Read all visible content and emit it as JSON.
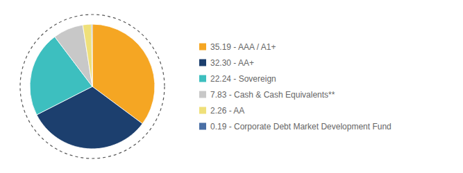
{
  "chart_data": {
    "type": "pie",
    "categories": [
      "35.19 - AAA / A1+",
      "32.30 - AA+",
      "22.24 - Sovereign",
      "7.83 - Cash & Cash Equivalents**",
      "2.26 - AA",
      "0.19 - Corporate Debt Market Development Fund"
    ],
    "values": [
      35.19,
      32.3,
      22.24,
      7.83,
      2.26,
      0.19
    ],
    "colors": [
      "#F5A623",
      "#1C3F6E",
      "#3DBFBF",
      "#C8C8C8",
      "#EFE07A",
      "#4A6FA5"
    ],
    "legend": "right"
  }
}
